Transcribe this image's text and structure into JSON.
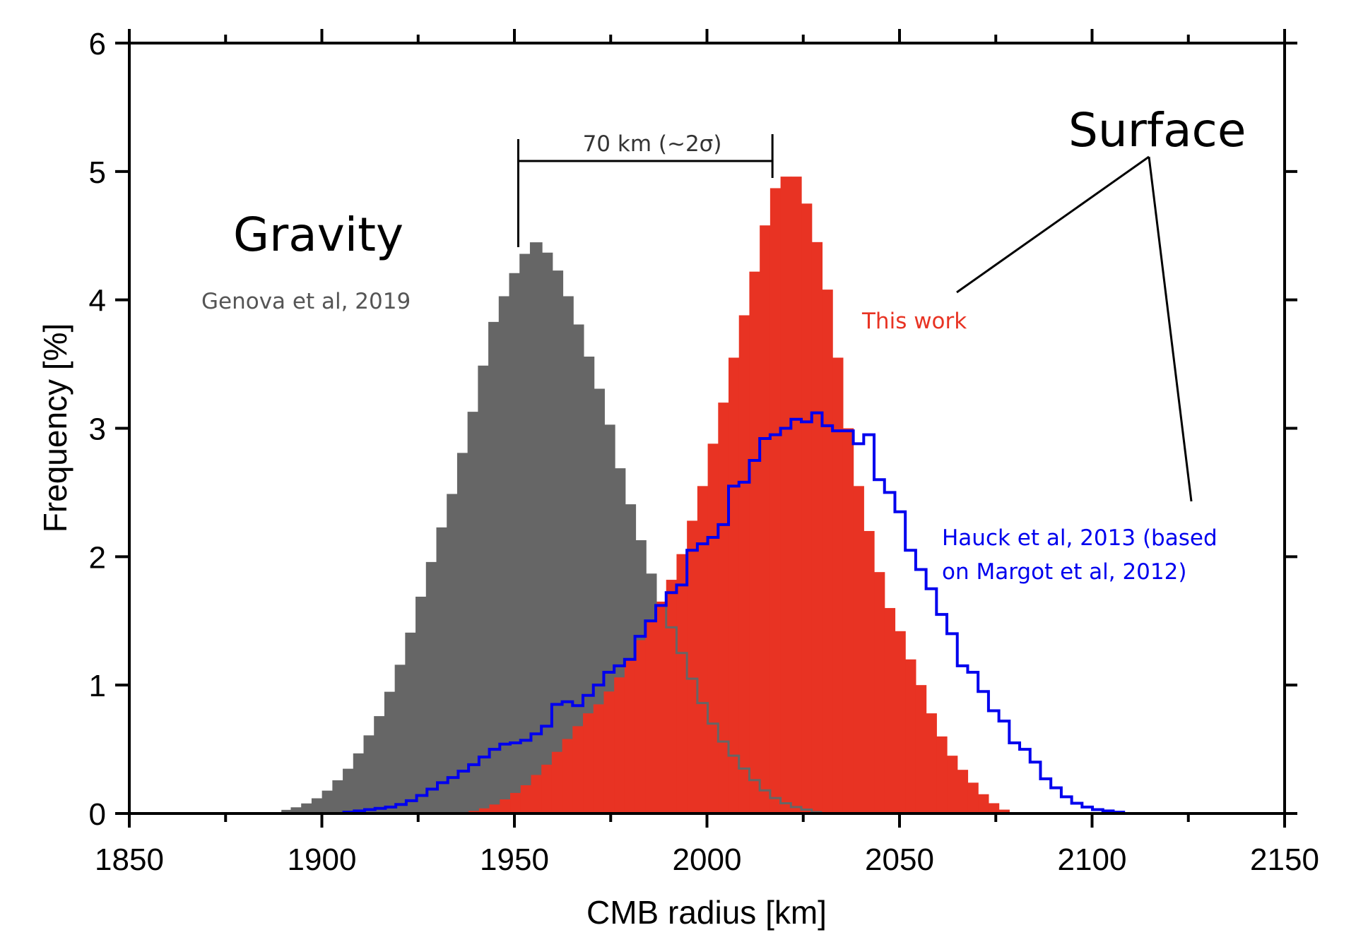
{
  "chart_data": {
    "type": "bar",
    "subtype": "histogram",
    "title": "",
    "xlabel": "CMB radius [km]",
    "ylabel": "Frequency [%]",
    "xlim": [
      1850,
      2150
    ],
    "ylim": [
      0,
      6
    ],
    "xticks": [
      1850,
      1900,
      1950,
      2000,
      2050,
      2100,
      2150
    ],
    "xticks_minor_step": 25,
    "yticks": [
      0,
      1,
      2,
      3,
      4,
      5,
      6
    ],
    "grid": false,
    "bin_width": 2.7,
    "series": [
      {
        "name": "Genova et al, 2019",
        "group": "Gravity",
        "style": "filled",
        "color": "#666666",
        "x": [
          1889.5,
          1892.2,
          1894.9,
          1897.6,
          1900.3,
          1903.0,
          1905.7,
          1908.4,
          1911.1,
          1913.8,
          1916.5,
          1919.2,
          1921.9,
          1924.6,
          1927.3,
          1930.0,
          1932.7,
          1935.4,
          1938.1,
          1940.8,
          1943.5,
          1946.2,
          1948.9,
          1951.6,
          1954.3,
          1957.0,
          1959.7,
          1962.4,
          1965.1,
          1967.8,
          1970.5,
          1973.2,
          1975.9,
          1978.6,
          1981.3,
          1984.0,
          1986.7,
          1989.4,
          1992.1,
          1994.8,
          1997.5,
          2000.2,
          2002.9,
          2005.6,
          2008.3,
          2011.0,
          2013.7,
          2016.4,
          2019.1,
          2021.8,
          2024.5,
          2027.2
        ],
        "values": [
          0.02,
          0.04,
          0.07,
          0.11,
          0.17,
          0.25,
          0.34,
          0.46,
          0.6,
          0.75,
          0.94,
          1.15,
          1.4,
          1.68,
          1.95,
          2.22,
          2.48,
          2.8,
          3.12,
          3.48,
          3.82,
          4.02,
          4.2,
          4.35,
          4.44,
          4.36,
          4.22,
          4.02,
          3.8,
          3.55,
          3.3,
          3.02,
          2.68,
          2.4,
          2.12,
          1.86,
          1.62,
          1.45,
          1.25,
          1.05,
          0.86,
          0.7,
          0.56,
          0.45,
          0.35,
          0.26,
          0.18,
          0.12,
          0.08,
          0.05,
          0.03,
          0.01
        ]
      },
      {
        "name": "This work",
        "group": "Surface",
        "style": "filled",
        "color": "#e83323",
        "x": [
          1935.4,
          1938.1,
          1940.8,
          1943.5,
          1946.2,
          1948.9,
          1951.6,
          1954.3,
          1957.0,
          1959.7,
          1962.4,
          1965.1,
          1967.8,
          1970.5,
          1973.2,
          1975.9,
          1978.6,
          1981.3,
          1984.0,
          1986.7,
          1989.4,
          1992.1,
          1994.8,
          1997.5,
          2000.2,
          2002.9,
          2005.6,
          2008.3,
          2011.0,
          2013.7,
          2016.4,
          2019.1,
          2021.8,
          2024.5,
          2027.2,
          2029.9,
          2032.6,
          2035.3,
          2038.0,
          2040.7,
          2043.4,
          2046.1,
          2048.8,
          2051.5,
          2054.2,
          2056.9,
          2059.6,
          2062.3,
          2065.0,
          2067.7,
          2070.4,
          2073.1,
          2075.8
        ],
        "values": [
          0.01,
          0.02,
          0.04,
          0.07,
          0.11,
          0.16,
          0.22,
          0.3,
          0.38,
          0.48,
          0.58,
          0.68,
          0.78,
          0.85,
          0.95,
          1.06,
          1.2,
          1.35,
          1.5,
          1.65,
          1.82,
          2.02,
          2.28,
          2.55,
          2.88,
          3.2,
          3.55,
          3.88,
          4.22,
          4.58,
          4.87,
          4.96,
          4.96,
          4.75,
          4.45,
          4.08,
          3.55,
          3.0,
          2.55,
          2.2,
          1.88,
          1.6,
          1.42,
          1.2,
          1.0,
          0.78,
          0.6,
          0.45,
          0.34,
          0.24,
          0.15,
          0.08,
          0.03
        ]
      },
      {
        "name": "Hauck et al, 2013 (based on Margot et al, 2012)",
        "group": "Surface",
        "style": "step-outline",
        "color": "#0000ee",
        "x": [
          1905.7,
          1908.4,
          1911.1,
          1913.8,
          1916.5,
          1919.2,
          1921.9,
          1924.6,
          1927.3,
          1930.0,
          1932.7,
          1935.4,
          1938.1,
          1940.8,
          1943.5,
          1946.2,
          1948.9,
          1951.6,
          1954.3,
          1957.0,
          1959.7,
          1962.4,
          1965.1,
          1967.8,
          1970.5,
          1973.2,
          1975.9,
          1978.6,
          1981.3,
          1984.0,
          1986.7,
          1989.4,
          1992.1,
          1994.8,
          1997.5,
          2000.2,
          2002.9,
          2005.6,
          2008.3,
          2011.0,
          2013.7,
          2016.4,
          2019.1,
          2021.8,
          2024.5,
          2027.2,
          2029.9,
          2032.6,
          2035.3,
          2038.0,
          2040.7,
          2043.4,
          2046.1,
          2048.8,
          2051.5,
          2054.2,
          2056.9,
          2059.6,
          2062.3,
          2065.0,
          2067.7,
          2070.4,
          2073.1,
          2075.8,
          2078.5,
          2081.2,
          2083.9,
          2086.6,
          2089.3,
          2092.0,
          2094.7,
          2097.4,
          2100.1,
          2102.8,
          2105.5,
          2108.2
        ],
        "values": [
          0.01,
          0.02,
          0.03,
          0.04,
          0.05,
          0.07,
          0.1,
          0.14,
          0.19,
          0.24,
          0.28,
          0.33,
          0.38,
          0.44,
          0.5,
          0.54,
          0.55,
          0.57,
          0.62,
          0.68,
          0.85,
          0.87,
          0.84,
          0.92,
          1.0,
          1.1,
          1.15,
          1.2,
          1.38,
          1.5,
          1.62,
          1.72,
          1.78,
          2.05,
          2.1,
          2.15,
          2.25,
          2.55,
          2.58,
          2.75,
          2.92,
          2.95,
          3.0,
          3.07,
          3.05,
          3.12,
          3.02,
          2.98,
          2.98,
          2.88,
          2.95,
          2.6,
          2.5,
          2.35,
          2.05,
          1.9,
          1.75,
          1.55,
          1.4,
          1.15,
          1.1,
          0.95,
          0.8,
          0.72,
          0.55,
          0.5,
          0.4,
          0.27,
          0.2,
          0.13,
          0.08,
          0.05,
          0.03,
          0.02,
          0.01,
          0.0
        ]
      }
    ],
    "annotations": {
      "gravity_title": "Gravity",
      "gravity_source": "Genova et al, 2019",
      "surface_title": "Surface",
      "this_work": "This work",
      "hauck_line1": "Hauck et al, 2013 (based",
      "hauck_line2": "on Margot et al, 2012)",
      "separation_label": "70 km (~2σ)",
      "separation_from_km": 1951,
      "separation_to_km": 2017
    }
  }
}
